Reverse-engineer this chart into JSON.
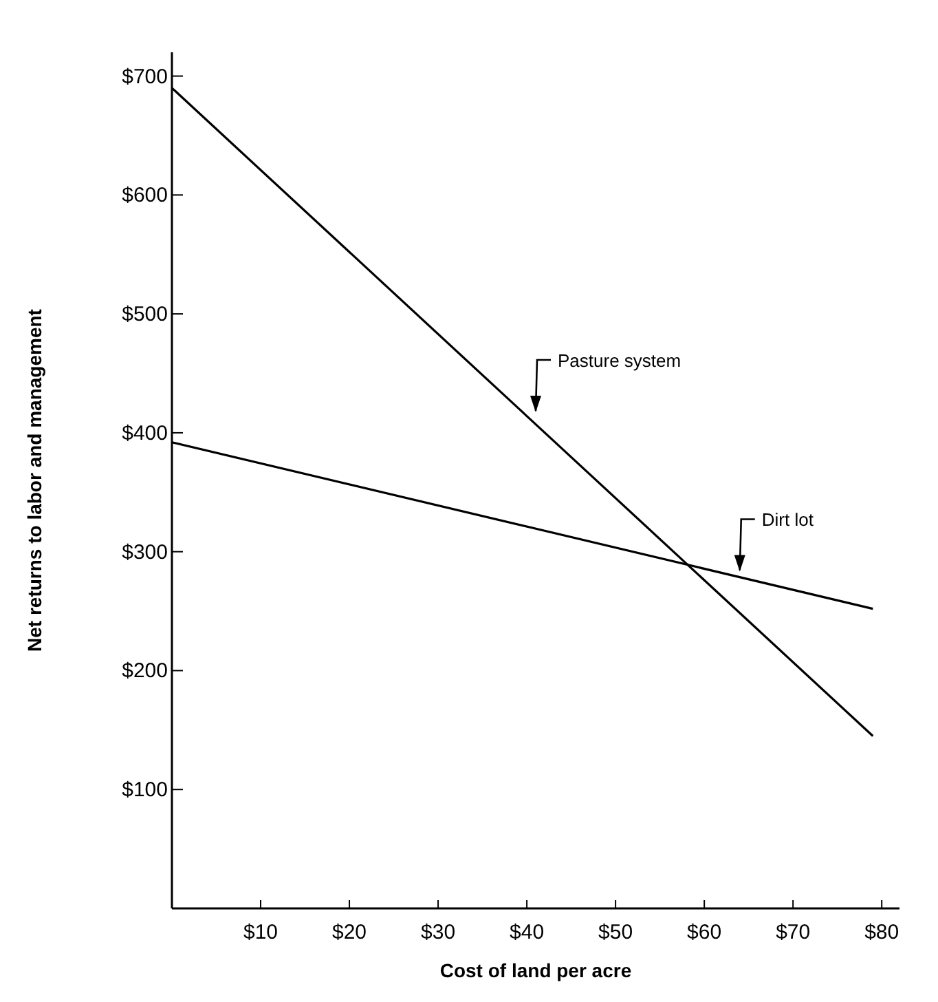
{
  "chart_data": {
    "type": "line",
    "xlabel": "Cost of land per acre",
    "ylabel": "Net returns to labor and management",
    "xlim": [
      0,
      82
    ],
    "xticks": [
      {
        "value": 10,
        "label": "$10"
      },
      {
        "value": 20,
        "label": "$20"
      },
      {
        "value": 30,
        "label": "$30"
      },
      {
        "value": 40,
        "label": "$40"
      },
      {
        "value": 50,
        "label": "$50"
      },
      {
        "value": 60,
        "label": "$60"
      },
      {
        "value": 70,
        "label": "$70"
      },
      {
        "value": 80,
        "label": "$80"
      }
    ],
    "ylim": [
      0,
      720
    ],
    "yticks": [
      {
        "value": 100,
        "label": "$100"
      },
      {
        "value": 200,
        "label": "$200"
      },
      {
        "value": 300,
        "label": "$300"
      },
      {
        "value": 400,
        "label": "$400"
      },
      {
        "value": 500,
        "label": "$500"
      },
      {
        "value": 600,
        "label": "$600"
      },
      {
        "value": 700,
        "label": "$700"
      }
    ],
    "x": [
      0,
      79
    ],
    "series": [
      {
        "color": "#000000",
        "values": [
          690,
          145
        ]
      },
      {
        "color": "#000000",
        "values": [
          392,
          252
        ]
      }
    ],
    "annotations": [
      {
        "text": "Pasture system",
        "x": 41,
        "y": 415
      },
      {
        "text": "Dirt lot",
        "x": 64,
        "y": 281
      }
    ],
    "grid": false,
    "marker": "none",
    "line_style": "solid"
  }
}
